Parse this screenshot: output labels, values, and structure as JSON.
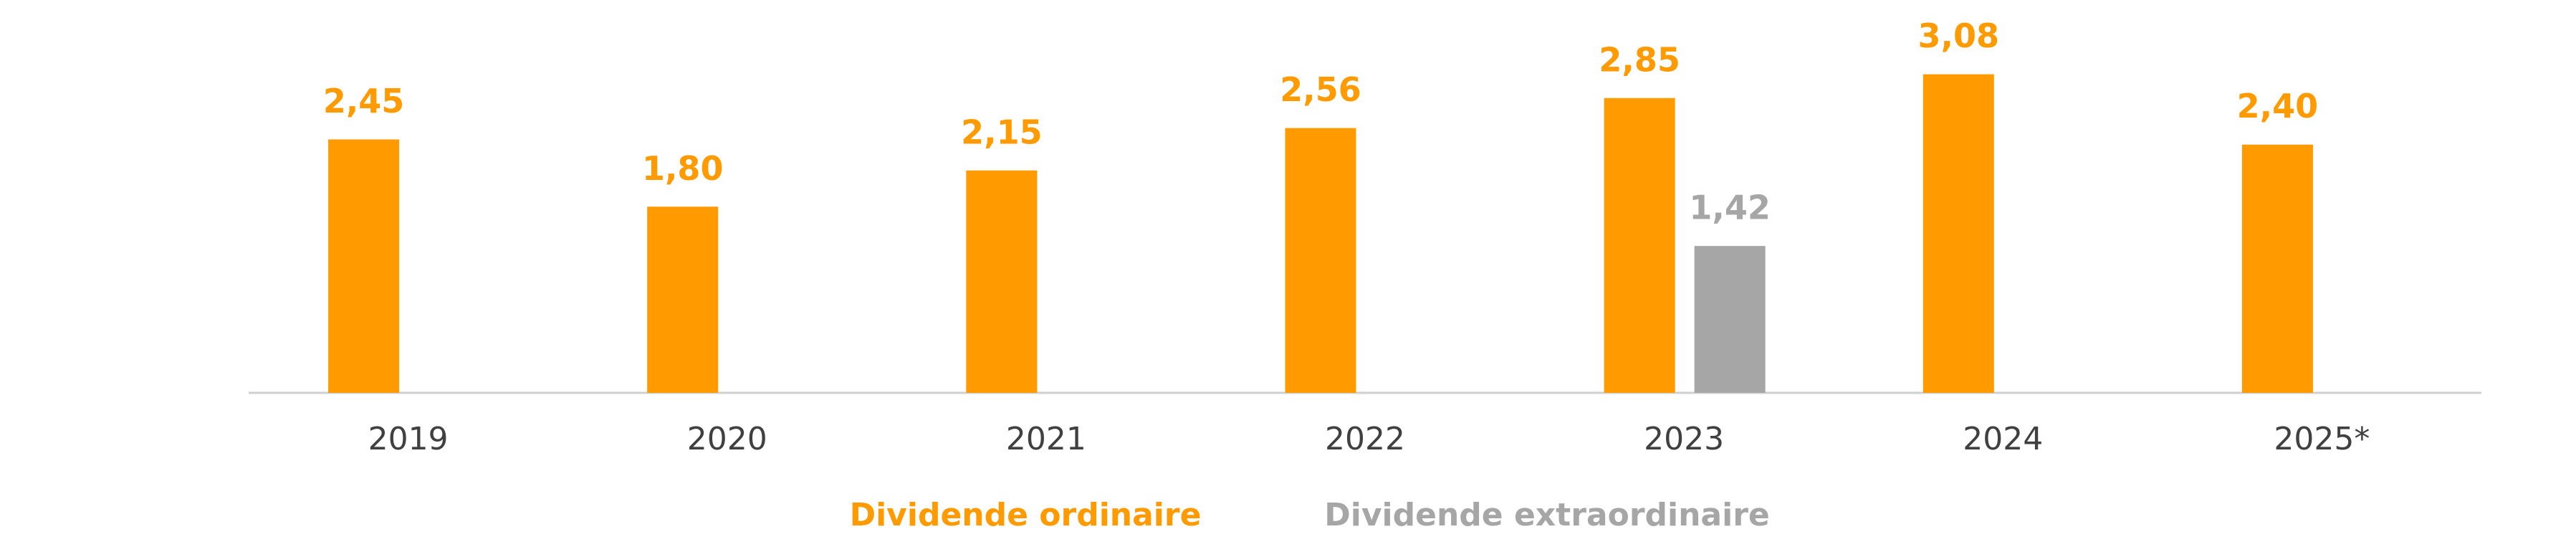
{
  "chart_data": {
    "type": "bar",
    "categories": [
      "2019",
      "2020",
      "2021",
      "2022",
      "2023",
      "2024",
      "2025*"
    ],
    "series": [
      {
        "name": "Dividende ordinaire",
        "color": "#ff9a00",
        "values": [
          2.45,
          1.8,
          2.15,
          2.56,
          2.85,
          3.08,
          2.4
        ],
        "value_labels": [
          "2,45",
          "1,80",
          "2,15",
          "2,56",
          "2,85",
          "3,08",
          "2,40"
        ]
      },
      {
        "name": "Dividende extraordinaire",
        "color": "#a6a6a6",
        "values": [
          null,
          null,
          null,
          null,
          1.42,
          null,
          null
        ],
        "value_labels": [
          null,
          null,
          null,
          null,
          "1,42",
          null,
          null
        ]
      }
    ],
    "ylim": [
      0,
      3.5
    ],
    "legend": "bottom"
  }
}
